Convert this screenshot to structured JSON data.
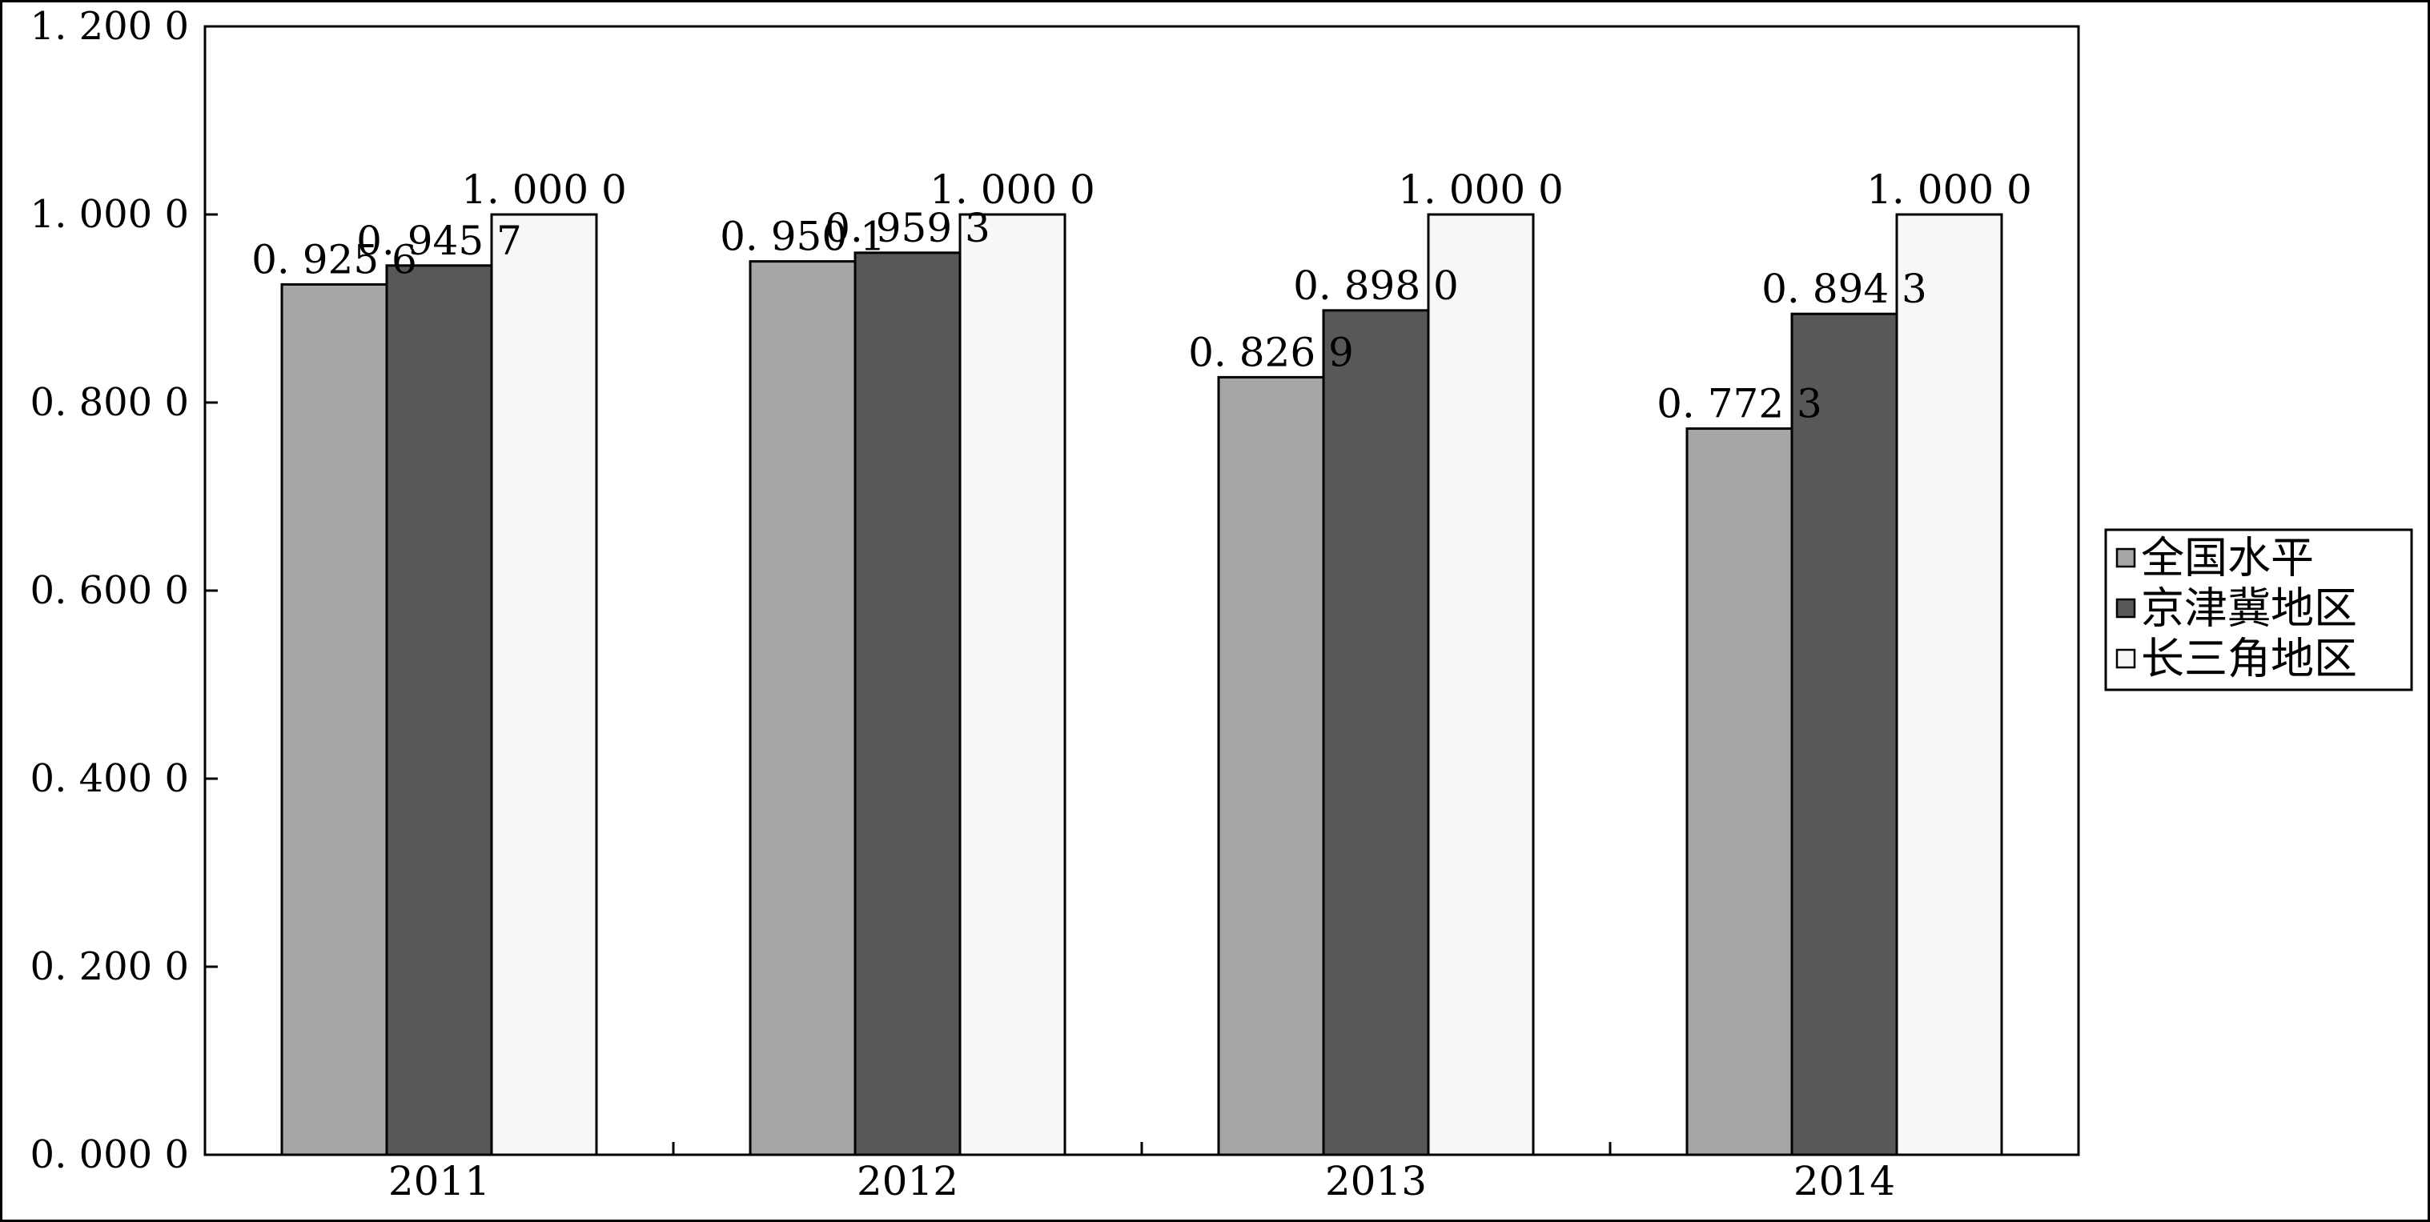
{
  "chart_data": {
    "type": "bar",
    "categories": [
      "2011",
      "2012",
      "2013",
      "2014"
    ],
    "series": [
      {
        "name": "全国水平",
        "values": [
          0.9256,
          0.9501,
          0.8269,
          0.7723
        ],
        "labels": [
          "0. 925 6",
          "0. 950 1",
          "0. 826 9",
          "0. 772 3"
        ],
        "color": "#a6a6a6"
      },
      {
        "name": "京津冀地区",
        "values": [
          0.9457,
          0.9593,
          0.898,
          0.8943
        ],
        "labels": [
          "0. 945 7",
          "0. 959 3",
          "0. 898 0",
          "0. 894 3"
        ],
        "color": "#585858"
      },
      {
        "name": "长三角地区",
        "values": [
          1.0,
          1.0,
          1.0,
          1.0
        ],
        "labels": [
          "1. 000 0",
          "1. 000 0",
          "1. 000 0",
          "1. 000 0"
        ],
        "color": "#f7f7f7"
      }
    ],
    "ylim": [
      0,
      1.2
    ],
    "yticks": [
      0,
      0.2,
      0.4,
      0.6,
      0.8,
      1.0,
      1.2
    ],
    "ytick_labels": [
      "0. 000 0",
      "0. 200 0",
      "0. 400 0",
      "0. 600 0",
      "0. 800 0",
      "1. 000 0",
      "1. 200 0"
    ],
    "title": "",
    "xlabel": "",
    "ylabel": "",
    "legend_position": "right",
    "grid": false
  }
}
